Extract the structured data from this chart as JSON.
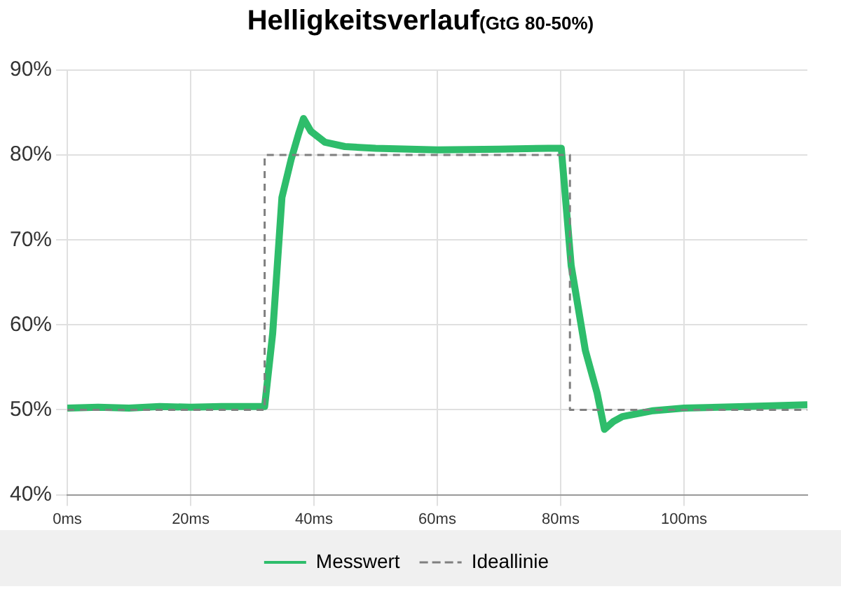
{
  "chart_data": {
    "type": "line",
    "title": "Helligkeitsverlauf",
    "subtitle": "(GtG 80-50%)",
    "xlim": [
      0,
      120
    ],
    "xticks": [
      {
        "value": 0,
        "label": "0ms"
      },
      {
        "value": 20,
        "label": "20ms"
      },
      {
        "value": 40,
        "label": "40ms"
      },
      {
        "value": 60,
        "label": "60ms"
      },
      {
        "value": 80,
        "label": "80ms"
      },
      {
        "value": 100,
        "label": "100ms"
      }
    ],
    "ylim": [
      40,
      90
    ],
    "yticks": [
      {
        "value": 40,
        "label": "40%"
      },
      {
        "value": 50,
        "label": "50%"
      },
      {
        "value": 60,
        "label": "60%"
      },
      {
        "value": 70,
        "label": "70%"
      },
      {
        "value": 80,
        "label": "80%"
      },
      {
        "value": 90,
        "label": "90%"
      }
    ],
    "grid": true,
    "legend": "bottom",
    "marker": "none",
    "series": [
      {
        "name": "Messwert",
        "color": "#2ebd6b",
        "line_style": "solid",
        "x": [
          0,
          5,
          10,
          15,
          20,
          25,
          30,
          32,
          33.3,
          34.8,
          36.3,
          37.5,
          38.3,
          39.5,
          41.8,
          45,
          50,
          60,
          70,
          78,
          80.1,
          81.7,
          84,
          85.9,
          87.1,
          88.5,
          90,
          95,
          100,
          110,
          120
        ],
        "values": [
          50.2,
          50.3,
          50.2,
          50.4,
          50.3,
          50.4,
          50.4,
          50.4,
          59,
          75,
          79.5,
          82.5,
          84.3,
          82.8,
          81.5,
          81,
          80.8,
          80.6,
          80.7,
          80.8,
          80.8,
          67,
          57,
          52,
          47.7,
          48.6,
          49.2,
          49.9,
          50.2,
          50.4,
          50.6
        ]
      },
      {
        "name": "Ideallinie",
        "color": "#7f7f7f",
        "line_style": "dashed",
        "x": [
          0,
          32,
          32,
          81.5,
          81.5,
          120
        ],
        "values": [
          50,
          50,
          80,
          80,
          50,
          50
        ]
      }
    ]
  }
}
